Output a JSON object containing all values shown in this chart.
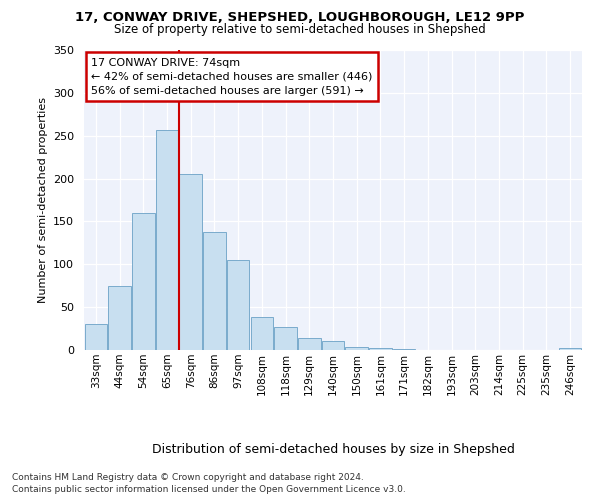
{
  "title_line1": "17, CONWAY DRIVE, SHEPSHED, LOUGHBOROUGH, LE12 9PP",
  "title_line2": "Size of property relative to semi-detached houses in Shepshed",
  "xlabel": "Distribution of semi-detached houses by size in Shepshed",
  "ylabel": "Number of semi-detached properties",
  "categories": [
    "33sqm",
    "44sqm",
    "54sqm",
    "65sqm",
    "76sqm",
    "86sqm",
    "97sqm",
    "108sqm",
    "118sqm",
    "129sqm",
    "140sqm",
    "150sqm",
    "161sqm",
    "171sqm",
    "182sqm",
    "193sqm",
    "203sqm",
    "214sqm",
    "225sqm",
    "235sqm",
    "246sqm"
  ],
  "values": [
    30,
    75,
    160,
    257,
    205,
    138,
    105,
    38,
    27,
    14,
    10,
    4,
    2,
    1,
    0,
    0,
    0,
    0,
    0,
    0,
    2
  ],
  "bar_color": "#c8dff0",
  "bar_edge_color": "#7aabcc",
  "vline_x_index": 4,
  "vline_color": "#cc0000",
  "property_label": "17 CONWAY DRIVE: 74sqm",
  "pct_smaller": "42%",
  "pct_smaller_n": 446,
  "pct_larger": "56%",
  "pct_larger_n": 591,
  "annotation_box_color": "#cc0000",
  "ylim": [
    0,
    350
  ],
  "yticks": [
    0,
    50,
    100,
    150,
    200,
    250,
    300,
    350
  ],
  "background_color": "#eef2fb",
  "footer1": "Contains HM Land Registry data © Crown copyright and database right 2024.",
  "footer2": "Contains public sector information licensed under the Open Government Licence v3.0."
}
